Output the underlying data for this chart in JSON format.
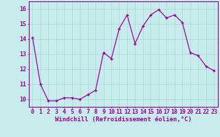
{
  "x": [
    0,
    1,
    2,
    3,
    4,
    5,
    6,
    7,
    8,
    9,
    10,
    11,
    12,
    13,
    14,
    15,
    16,
    17,
    18,
    19,
    20,
    21,
    22,
    23
  ],
  "y": [
    14.1,
    11.0,
    9.9,
    9.9,
    10.1,
    10.1,
    10.0,
    10.3,
    10.6,
    13.1,
    12.7,
    14.7,
    15.6,
    13.7,
    14.85,
    15.6,
    15.95,
    15.4,
    15.6,
    15.1,
    13.1,
    12.9,
    12.2,
    11.9
  ],
  "line_color": "#990099",
  "marker": "+",
  "marker_size": 3,
  "marker_edge_width": 1.0,
  "xlabel": "Windchill (Refroidissement éolien,°C)",
  "xlabel_fontsize": 6.5,
  "xtick_labels": [
    "0",
    "1",
    "2",
    "3",
    "4",
    "5",
    "6",
    "7",
    "8",
    "9",
    "10",
    "11",
    "12",
    "13",
    "14",
    "15",
    "16",
    "17",
    "18",
    "19",
    "20",
    "21",
    "22",
    "23"
  ],
  "ytick_labels": [
    "10",
    "11",
    "12",
    "13",
    "14",
    "15",
    "16"
  ],
  "ytick_values": [
    10,
    11,
    12,
    13,
    14,
    15,
    16
  ],
  "ylim": [
    9.5,
    16.5
  ],
  "xlim": [
    -0.5,
    23.5
  ],
  "grid_color": "#aadddd",
  "background_color": "#c8ecec",
  "tick_fontsize": 6,
  "line_width": 0.9,
  "spine_color": "#880088"
}
